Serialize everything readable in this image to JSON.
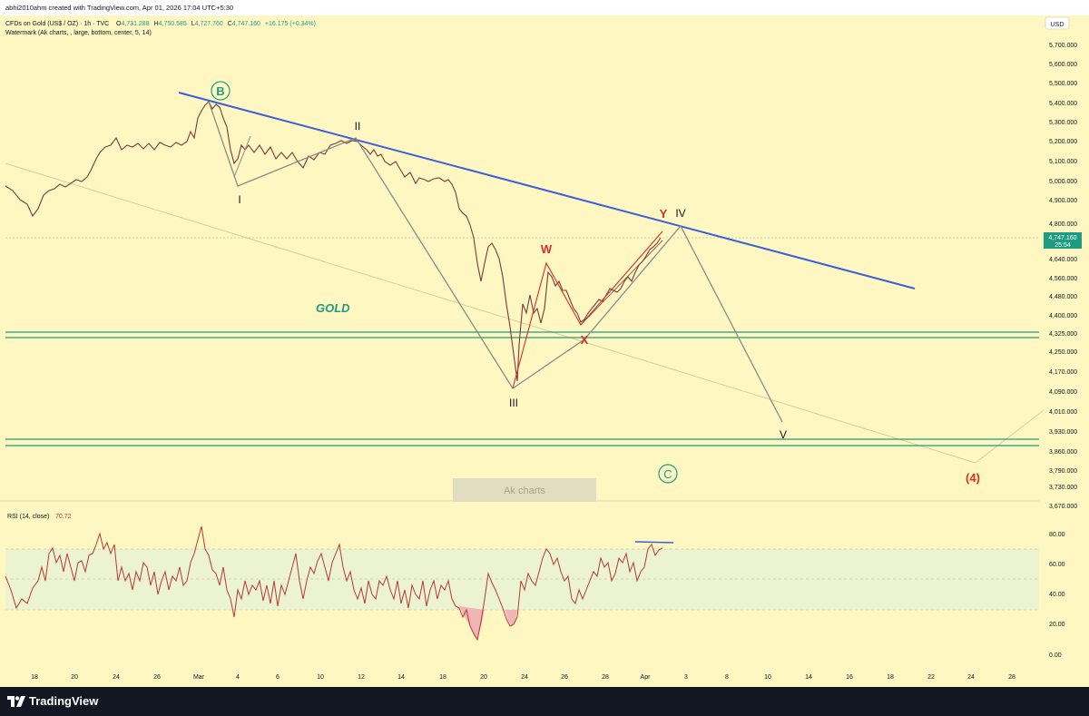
{
  "header": {
    "byline": "abhi2010ahm created with TradingView.com, Apr 01, 2026 17:04 UTC+5:30"
  },
  "legend": {
    "symbol": "CFDs on Gold (US$ / OZ) · 1h · TVC",
    "o_label": "O",
    "o_value": "4,731.288",
    "h_label": "H",
    "h_value": "4,750.585",
    "l_label": "L",
    "l_value": "4,727.760",
    "c_label": "C",
    "c_value": "4,747.160",
    "change": "+16.175 (+0.34%)",
    "watermark": "Watermark (Ak charts, , large, bottom, center, 5, 14)"
  },
  "price_axis": {
    "currency": "USD",
    "ticks": [
      "5,700.000",
      "5,600.000",
      "5,500.000",
      "5,400.000",
      "5,300.000",
      "5,200.000",
      "5,100.000",
      "5,000.000",
      "4,900.000",
      "4,800.000",
      "4,640.000",
      "4,560.000",
      "4,480.000",
      "4,400.000",
      "4,325.000",
      "4,250.000",
      "4,170.000",
      "4,090.000",
      "4,010.000",
      "3,930.000",
      "3,860.000",
      "3,790.000",
      "3,730.000",
      "3,670.000"
    ],
    "last_price": "4,747.160",
    "countdown": "25:54"
  },
  "rsi": {
    "label": "RSI (14, close)",
    "value": "70.72",
    "ticks": [
      "80.00",
      "60.00",
      "40.00",
      "20.00",
      "0.00"
    ]
  },
  "time_axis": {
    "ticks": [
      "18",
      "20",
      "24",
      "26",
      "Mar",
      "4",
      "6",
      "10",
      "12",
      "14",
      "18",
      "20",
      "24",
      "26",
      "28",
      "Apr",
      "3",
      "8",
      "10",
      "14",
      "16",
      "18",
      "22",
      "24",
      "28"
    ]
  },
  "annotations": {
    "gold": "GOLD",
    "wave_B": "B",
    "wave_C": "C",
    "wave_I": "I",
    "wave_II": "II",
    "wave_III": "III",
    "wave_IV": "IV",
    "wave_V": "V",
    "wave_W": "W",
    "wave_X": "X",
    "wave_Y": "Y",
    "wave_4": "(4)",
    "watermark_box": "Ak charts"
  },
  "colors": {
    "background": "#fff7c2",
    "trendline": "#3d5fd6",
    "support": "#1e9c82",
    "wave_red": "#d32f2f",
    "wave_teal": "#1e9c82",
    "candles": "#7a3b3b",
    "path_gray": "#8a8a8a",
    "last_price_badge": "#1e9c82"
  },
  "footer": {
    "brand": "TradingView"
  }
}
